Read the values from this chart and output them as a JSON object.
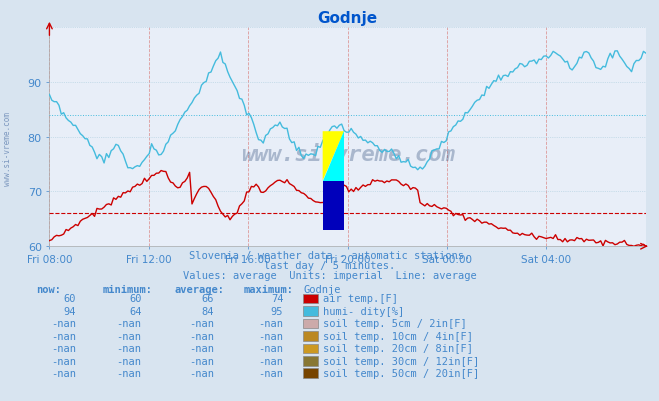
{
  "title": "Godnje",
  "title_color": "#0055cc",
  "bg_color": "#d8e4f0",
  "plot_bg_color": "#e8eef8",
  "text_color": "#4488cc",
  "watermark": "www.si-vreme.com",
  "subtitle1": "Slovenia / weather data - automatic stations.",
  "subtitle2": "last day / 5 minutes.",
  "subtitle3": "Values: average  Units: imperial  Line: average",
  "ymin": 60,
  "ymax": 100,
  "yticks": [
    60,
    70,
    80,
    90
  ],
  "avg_line_red": 66,
  "avg_line_blue": 84,
  "air_temp_color": "#cc0000",
  "humidity_color": "#44bbdd",
  "vgrid_color": "#dd9999",
  "hgrid_color": "#aaccdd",
  "x_labels": [
    "Fri 08:00",
    "Fri 12:00",
    "Fri 16:00",
    "Fri 20:00",
    "Sat 00:00",
    "Sat 04:00"
  ],
  "legend_headers": [
    "now:",
    "minimum:",
    "average:",
    "maximum:",
    "Godnje"
  ],
  "legend_rows": [
    {
      "now": "60",
      "min": "60",
      "avg": "66",
      "max": "74",
      "color": "#cc0000",
      "label": "air temp.[F]"
    },
    {
      "now": "94",
      "min": "64",
      "avg": "84",
      "max": "95",
      "color": "#44bbdd",
      "label": "humi- dity[%]"
    },
    {
      "now": "-nan",
      "min": "-nan",
      "avg": "-nan",
      "max": "-nan",
      "color": "#ccaaaa",
      "label": "soil temp. 5cm / 2in[F]"
    },
    {
      "now": "-nan",
      "min": "-nan",
      "avg": "-nan",
      "max": "-nan",
      "color": "#bb8822",
      "label": "soil temp. 10cm / 4in[F]"
    },
    {
      "now": "-nan",
      "min": "-nan",
      "avg": "-nan",
      "max": "-nan",
      "color": "#cc9922",
      "label": "soil temp. 20cm / 8in[F]"
    },
    {
      "now": "-nan",
      "min": "-nan",
      "avg": "-nan",
      "max": "-nan",
      "color": "#887733",
      "label": "soil temp. 30cm / 12in[F]"
    },
    {
      "now": "-nan",
      "min": "-nan",
      "avg": "-nan",
      "max": "-nan",
      "color": "#774400",
      "label": "soil temp. 50cm / 20in[F]"
    }
  ]
}
